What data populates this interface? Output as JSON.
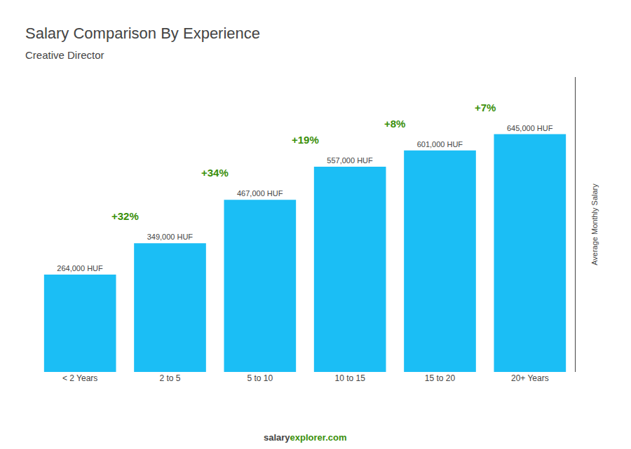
{
  "chart_data": {
    "type": "bar",
    "title": "Salary Comparison By Experience",
    "subtitle": "Creative Director",
    "categories": [
      "< 2 Years",
      "2 to 5",
      "5 to 10",
      "10 to 15",
      "15 to 20",
      "20+ Years"
    ],
    "values": [
      264000,
      349000,
      467000,
      557000,
      601000,
      645000
    ],
    "value_labels": [
      "264,000 HUF",
      "349,000 HUF",
      "467,000 HUF",
      "557,000 HUF",
      "601,000 HUF",
      "645,000 HUF"
    ],
    "data_labels": true,
    "annotations": [
      null,
      "+32%",
      "+34%",
      "+19%",
      "+8%",
      "+7%"
    ],
    "ylabel": "Average Monthly Salary",
    "footer": [
      "salary",
      "explorer.com"
    ],
    "color": "#1BBEF5",
    "ylim": [
      0,
      800000
    ],
    "tick_labels": "x",
    "grid": false
  }
}
